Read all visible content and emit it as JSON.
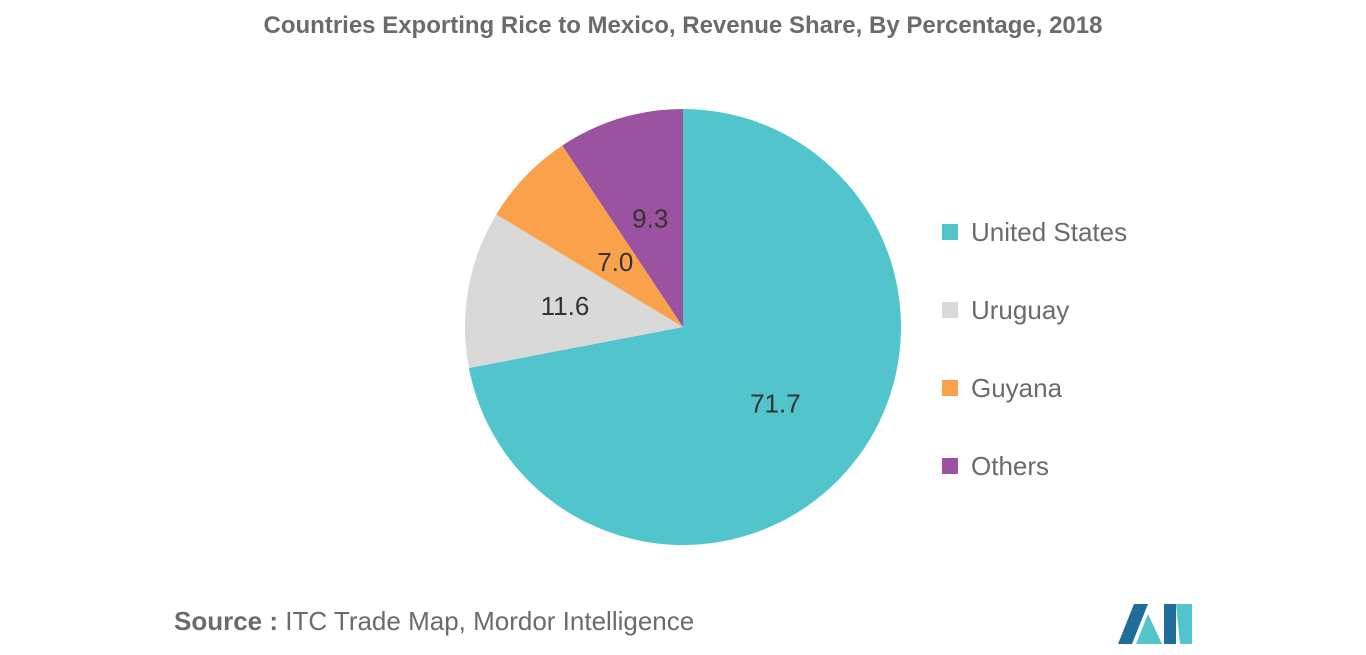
{
  "chart_data": {
    "type": "pie",
    "title": "Countries Exporting Rice to Mexico, Revenue Share, By Percentage, 2018",
    "slices": [
      {
        "label": "United States",
        "value": 71.7,
        "value_label": "71.7",
        "color": "#52c4cb"
      },
      {
        "label": "Uruguay",
        "value": 11.6,
        "value_label": "11.6",
        "color": "#d9d9d9"
      },
      {
        "label": "Guyana",
        "value": 7.0,
        "value_label": "7.0",
        "color": "#f9a24b"
      },
      {
        "label": "Others",
        "value": 9.3,
        "value_label": "9.3",
        "color": "#9b52a0"
      }
    ],
    "legend_position": "right"
  },
  "source": {
    "prefix": "Source :",
    "text": "ITC Trade Map, Mordor Intelligence"
  },
  "logo": {
    "name": "mordor-intelligence-logo-icon",
    "colors": [
      "#1f6e9a",
      "#52c4cb"
    ]
  }
}
